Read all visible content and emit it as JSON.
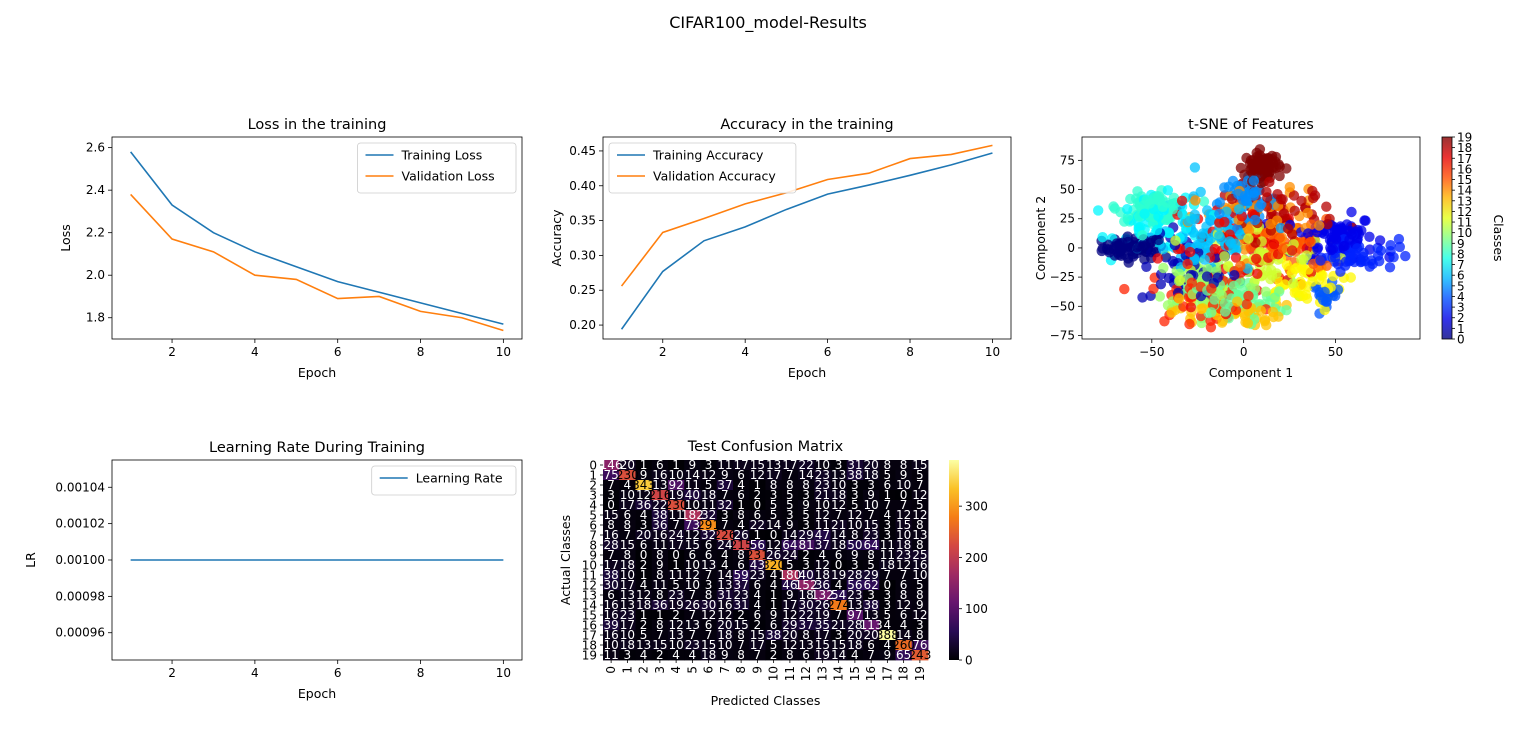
{
  "figure": {
    "suptitle": "CIFAR100_model-Results"
  },
  "colors": {
    "blue": "#1f77b4",
    "orange": "#ff7f0e"
  },
  "chart_data": [
    {
      "id": "loss",
      "type": "line",
      "title": "Loss in the training",
      "xlabel": "Epoch",
      "ylabel": "Loss",
      "xlim": [
        0.55,
        10.45
      ],
      "ylim": [
        1.7,
        2.65
      ],
      "xticks": [
        2,
        4,
        6,
        8,
        10
      ],
      "yticks": [
        1.8,
        2.0,
        2.2,
        2.4,
        2.6
      ],
      "legend": "top-right",
      "x": [
        1,
        2,
        3,
        4,
        5,
        6,
        7,
        8,
        9,
        10
      ],
      "series": [
        {
          "name": "Training Loss",
          "color": "#1f77b4",
          "values": [
            2.58,
            2.33,
            2.2,
            2.11,
            2.04,
            1.97,
            1.92,
            1.87,
            1.82,
            1.77
          ]
        },
        {
          "name": "Validation Loss",
          "color": "#ff7f0e",
          "values": [
            2.38,
            2.17,
            2.11,
            2.0,
            1.98,
            1.89,
            1.9,
            1.83,
            1.8,
            1.74
          ]
        }
      ]
    },
    {
      "id": "accuracy",
      "type": "line",
      "title": "Accuracy in the training",
      "xlabel": "Epoch",
      "ylabel": "Accuracy",
      "xlim": [
        0.55,
        10.45
      ],
      "ylim": [
        0.18,
        0.47
      ],
      "xticks": [
        2,
        4,
        6,
        8,
        10
      ],
      "yticks": [
        0.2,
        0.25,
        0.3,
        0.35,
        0.4,
        0.45
      ],
      "ytick_labels": [
        "0.20",
        "0.25",
        "0.30",
        "0.35",
        "0.40",
        "0.45"
      ],
      "legend": "top-left",
      "x": [
        1,
        2,
        3,
        4,
        5,
        6,
        7,
        8,
        9,
        10
      ],
      "series": [
        {
          "name": "Training Accuracy",
          "color": "#1f77b4",
          "values": [
            0.194,
            0.277,
            0.321,
            0.341,
            0.366,
            0.388,
            0.401,
            0.415,
            0.43,
            0.447
          ]
        },
        {
          "name": "Validation Accuracy",
          "color": "#ff7f0e",
          "values": [
            0.256,
            0.333,
            0.353,
            0.374,
            0.39,
            0.409,
            0.418,
            0.439,
            0.445,
            0.458
          ]
        }
      ]
    },
    {
      "id": "tsne",
      "type": "scatter",
      "title": "t-SNE of Features",
      "xlabel": "Component 1",
      "ylabel": "Component 2",
      "xlim": [
        -88,
        96
      ],
      "ylim": [
        -78,
        95
      ],
      "xticks": [
        -50,
        0,
        50
      ],
      "yticks": [
        -75,
        -50,
        -25,
        0,
        25,
        50,
        75
      ],
      "colorbar_label": "Classes",
      "colorbar_ticks": [
        0,
        1,
        2,
        3,
        4,
        5,
        6,
        7,
        8,
        9,
        10,
        11,
        12,
        13,
        14,
        15,
        16,
        17,
        18,
        19
      ],
      "clusters": [
        {
          "cls": 0,
          "center": [
            -60,
            0
          ],
          "spread": [
            14,
            8
          ],
          "count": 70
        },
        {
          "cls": 1,
          "center": [
            -30,
            -20
          ],
          "spread": [
            22,
            25
          ],
          "count": 50
        },
        {
          "cls": 2,
          "center": [
            50,
            10
          ],
          "spread": [
            18,
            15
          ],
          "count": 80
        },
        {
          "cls": 3,
          "center": [
            60,
            -5
          ],
          "spread": [
            20,
            12
          ],
          "count": 60
        },
        {
          "cls": 4,
          "center": [
            45,
            -40
          ],
          "spread": [
            6,
            8
          ],
          "count": 25
        },
        {
          "cls": 5,
          "center": [
            0,
            40
          ],
          "spread": [
            15,
            15
          ],
          "count": 50
        },
        {
          "cls": 6,
          "center": [
            -20,
            10
          ],
          "spread": [
            25,
            30
          ],
          "count": 80
        },
        {
          "cls": 7,
          "center": [
            -45,
            20
          ],
          "spread": [
            20,
            20
          ],
          "count": 60
        },
        {
          "cls": 8,
          "center": [
            -50,
            35
          ],
          "spread": [
            15,
            10
          ],
          "count": 70
        },
        {
          "cls": 9,
          "center": [
            -5,
            -45
          ],
          "spread": [
            25,
            15
          ],
          "count": 60
        },
        {
          "cls": 10,
          "center": [
            -20,
            -30
          ],
          "spread": [
            25,
            20
          ],
          "count": 60
        },
        {
          "cls": 11,
          "center": [
            10,
            -10
          ],
          "spread": [
            30,
            25
          ],
          "count": 60
        },
        {
          "cls": 12,
          "center": [
            30,
            -30
          ],
          "spread": [
            20,
            20
          ],
          "count": 50
        },
        {
          "cls": 13,
          "center": [
            -10,
            -55
          ],
          "spread": [
            25,
            10
          ],
          "count": 50
        },
        {
          "cls": 14,
          "center": [
            10,
            20
          ],
          "spread": [
            30,
            25
          ],
          "count": 60
        },
        {
          "cls": 15,
          "center": [
            25,
            0
          ],
          "spread": [
            20,
            20
          ],
          "count": 50
        },
        {
          "cls": 16,
          "center": [
            -20,
            -40
          ],
          "spread": [
            25,
            20
          ],
          "count": 60
        },
        {
          "cls": 17,
          "center": [
            0,
            0
          ],
          "spread": [
            35,
            30
          ],
          "count": 60
        },
        {
          "cls": 18,
          "center": [
            20,
            30
          ],
          "spread": [
            25,
            20
          ],
          "count": 60
        },
        {
          "cls": 19,
          "center": [
            10,
            70
          ],
          "spread": [
            8,
            10
          ],
          "count": 70
        }
      ]
    },
    {
      "id": "lr",
      "type": "line",
      "title": "Learning Rate During Training",
      "xlabel": "Epoch",
      "ylabel": "LR",
      "xlim": [
        0.55,
        10.45
      ],
      "ylim": [
        0.000945,
        0.001055
      ],
      "xticks": [
        2,
        4,
        6,
        8,
        10
      ],
      "yticks": [
        0.00096,
        0.00098,
        0.001,
        0.00102,
        0.00104
      ],
      "ytick_labels": [
        "0.00096",
        "0.00098",
        "0.00100",
        "0.00102",
        "0.00104"
      ],
      "legend": "top-right",
      "x": [
        1,
        2,
        3,
        4,
        5,
        6,
        7,
        8,
        9,
        10
      ],
      "series": [
        {
          "name": "Learning Rate",
          "color": "#1f77b4",
          "values": [
            0.001,
            0.001,
            0.001,
            0.001,
            0.001,
            0.001,
            0.001,
            0.001,
            0.001,
            0.001
          ]
        }
      ]
    },
    {
      "id": "confusion",
      "type": "heatmap",
      "title": "Test Confusion Matrix",
      "xlabel": "Predicted Classes",
      "ylabel": "Actual Classes",
      "labels": [
        "0",
        "1",
        "2",
        "3",
        "4",
        "5",
        "6",
        "7",
        "8",
        "9",
        "10",
        "11",
        "12",
        "13",
        "14",
        "15",
        "16",
        "17",
        "18",
        "19"
      ],
      "vmin": 0,
      "vmax": 390,
      "colorbar_ticks": [
        0,
        100,
        200,
        300
      ],
      "colormap": "inferno",
      "matrix": [
        [
          146,
          20,
          1,
          6,
          1,
          9,
          3,
          11,
          17,
          15,
          13,
          17,
          22,
          10,
          3,
          31,
          20,
          8,
          8,
          15
        ],
        [
          75,
          230,
          9,
          16,
          10,
          14,
          12,
          9,
          6,
          12,
          17,
          7,
          14,
          23,
          13,
          38,
          18,
          5,
          9,
          5
        ],
        [
          7,
          4,
          343,
          13,
          92,
          11,
          5,
          37,
          4,
          1,
          8,
          8,
          8,
          23,
          10,
          3,
          3,
          6,
          10,
          7
        ],
        [
          3,
          10,
          12,
          216,
          19,
          40,
          18,
          7,
          6,
          2,
          3,
          5,
          3,
          21,
          18,
          3,
          9,
          1,
          0,
          12
        ],
        [
          0,
          17,
          36,
          22,
          230,
          10,
          11,
          32,
          1,
          0,
          5,
          5,
          9,
          10,
          12,
          5,
          10,
          7,
          7,
          5
        ],
        [
          15,
          6,
          4,
          38,
          11,
          182,
          32,
          3,
          8,
          6,
          5,
          3,
          5,
          12,
          7,
          12,
          7,
          4,
          12,
          12
        ],
        [
          8,
          8,
          3,
          36,
          7,
          73,
          291,
          7,
          4,
          22,
          14,
          9,
          3,
          11,
          21,
          10,
          15,
          3,
          15,
          8
        ],
        [
          16,
          7,
          20,
          16,
          24,
          12,
          32,
          226,
          26,
          1,
          0,
          14,
          29,
          47,
          14,
          8,
          23,
          3,
          10,
          13
        ],
        [
          28,
          15,
          6,
          11,
          17,
          15,
          6,
          24,
          215,
          56,
          12,
          64,
          81,
          37,
          18,
          50,
          64,
          11,
          18,
          8
        ],
        [
          7,
          8,
          0,
          8,
          0,
          6,
          6,
          4,
          8,
          231,
          26,
          24,
          2,
          4,
          6,
          9,
          8,
          11,
          23,
          25
        ],
        [
          17,
          18,
          2,
          9,
          1,
          10,
          13,
          4,
          6,
          43,
          320,
          5,
          3,
          12,
          0,
          3,
          5,
          18,
          12,
          16
        ],
        [
          38,
          10,
          1,
          8,
          11,
          12,
          7,
          14,
          59,
          23,
          4,
          180,
          40,
          18,
          19,
          28,
          29,
          7,
          7,
          10
        ],
        [
          30,
          17,
          4,
          11,
          5,
          10,
          3,
          13,
          37,
          6,
          4,
          46,
          152,
          36,
          4,
          56,
          62,
          0,
          6,
          5
        ],
        [
          6,
          13,
          12,
          8,
          23,
          7,
          8,
          31,
          23,
          4,
          1,
          9,
          18,
          132,
          54,
          23,
          3,
          3,
          8,
          8
        ],
        [
          16,
          13,
          18,
          36,
          19,
          26,
          30,
          16,
          31,
          4,
          1,
          17,
          30,
          26,
          274,
          13,
          38,
          3,
          12,
          9
        ],
        [
          16,
          23,
          1,
          1,
          2,
          7,
          12,
          12,
          2,
          6,
          9,
          12,
          22,
          19,
          7,
          97,
          13,
          5,
          6,
          12
        ],
        [
          39,
          17,
          2,
          8,
          12,
          13,
          6,
          20,
          15,
          2,
          6,
          29,
          37,
          35,
          21,
          28,
          113,
          4,
          4,
          3
        ],
        [
          16,
          10,
          5,
          7,
          13,
          7,
          7,
          18,
          8,
          15,
          38,
          20,
          8,
          17,
          3,
          20,
          20,
          388,
          14,
          8
        ],
        [
          10,
          18,
          13,
          15,
          10,
          23,
          15,
          10,
          7,
          17,
          5,
          12,
          13,
          15,
          15,
          18,
          6,
          4,
          260,
          76
        ],
        [
          11,
          3,
          4,
          2,
          4,
          4,
          18,
          9,
          8,
          7,
          2,
          8,
          6,
          19,
          14,
          4,
          7,
          9,
          65,
          243
        ]
      ]
    }
  ]
}
